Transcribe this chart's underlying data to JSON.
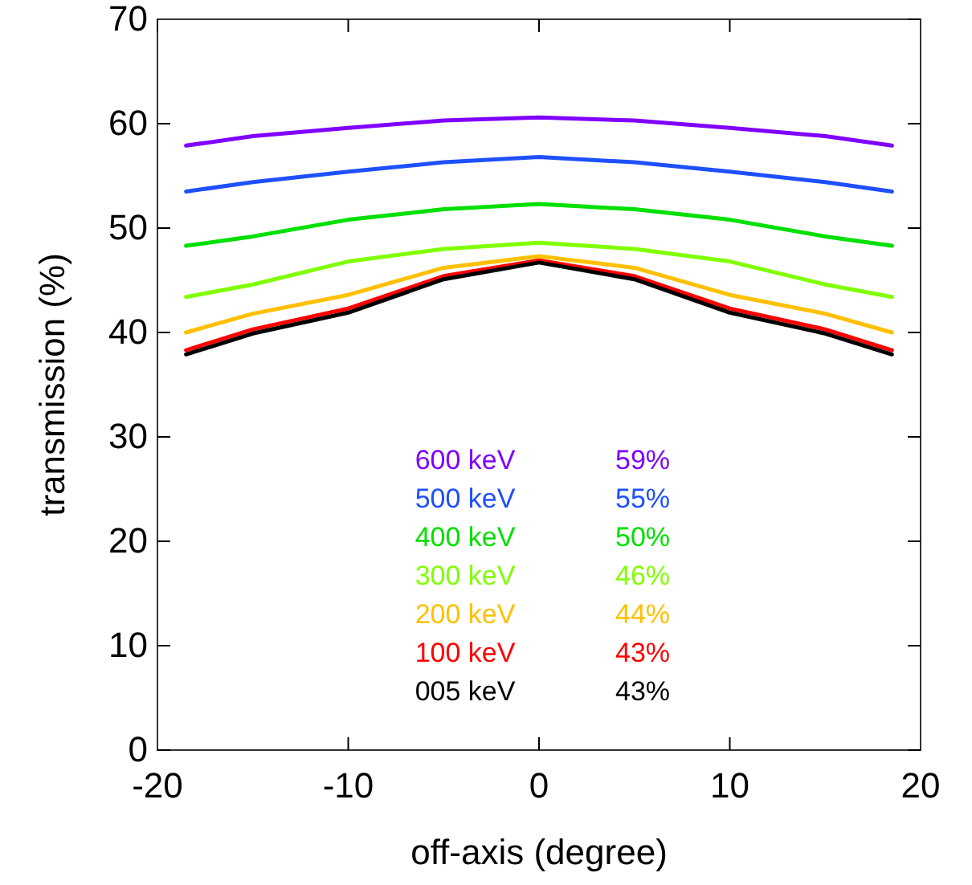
{
  "chart_data": {
    "type": "line",
    "xlabel": "off-axis (degree)",
    "ylabel": "transmission (%)",
    "x": [
      -18.5,
      -15,
      -10,
      -5,
      0,
      5,
      10,
      15,
      18.5
    ],
    "series": [
      {
        "name": "600 keV",
        "color": "#7f00ff",
        "values": [
          57.9,
          58.8,
          59.6,
          60.3,
          60.6,
          60.3,
          59.6,
          58.8,
          57.9
        ]
      },
      {
        "name": "500 keV",
        "color": "#1e50ff",
        "values": [
          53.5,
          54.4,
          55.4,
          56.3,
          56.8,
          56.3,
          55.4,
          54.4,
          53.5
        ]
      },
      {
        "name": "400 keV",
        "color": "#00e000",
        "values": [
          48.3,
          49.2,
          50.8,
          51.8,
          52.3,
          51.8,
          50.8,
          49.2,
          48.3
        ]
      },
      {
        "name": "300 keV",
        "color": "#80ff00",
        "values": [
          43.4,
          44.6,
          46.8,
          48.0,
          48.6,
          48.0,
          46.8,
          44.6,
          43.4
        ]
      },
      {
        "name": "200 keV",
        "color": "#ffc000",
        "values": [
          40.0,
          41.8,
          43.6,
          46.2,
          47.3,
          46.2,
          43.6,
          41.8,
          40.0
        ]
      },
      {
        "name": "100 keV",
        "color": "#ff0000",
        "values": [
          38.3,
          40.3,
          42.3,
          45.4,
          46.9,
          45.4,
          42.3,
          40.3,
          38.3
        ]
      },
      {
        "name": "005 keV",
        "color": "#000000",
        "values": [
          37.9,
          39.9,
          41.9,
          45.1,
          46.7,
          45.1,
          41.9,
          39.9,
          37.9
        ]
      }
    ],
    "annotations": [
      "59%",
      "55%",
      "50%",
      "46%",
      "44%",
      "43%",
      "43%"
    ],
    "xlim": [
      -20,
      20
    ],
    "xticks": [
      -20,
      -10,
      0,
      10,
      20
    ],
    "ylim": [
      0,
      70
    ],
    "yticks": [
      0,
      10,
      20,
      30,
      40,
      50,
      60,
      70
    ],
    "legend": "bottom",
    "grid": false,
    "line_style": "solid"
  }
}
